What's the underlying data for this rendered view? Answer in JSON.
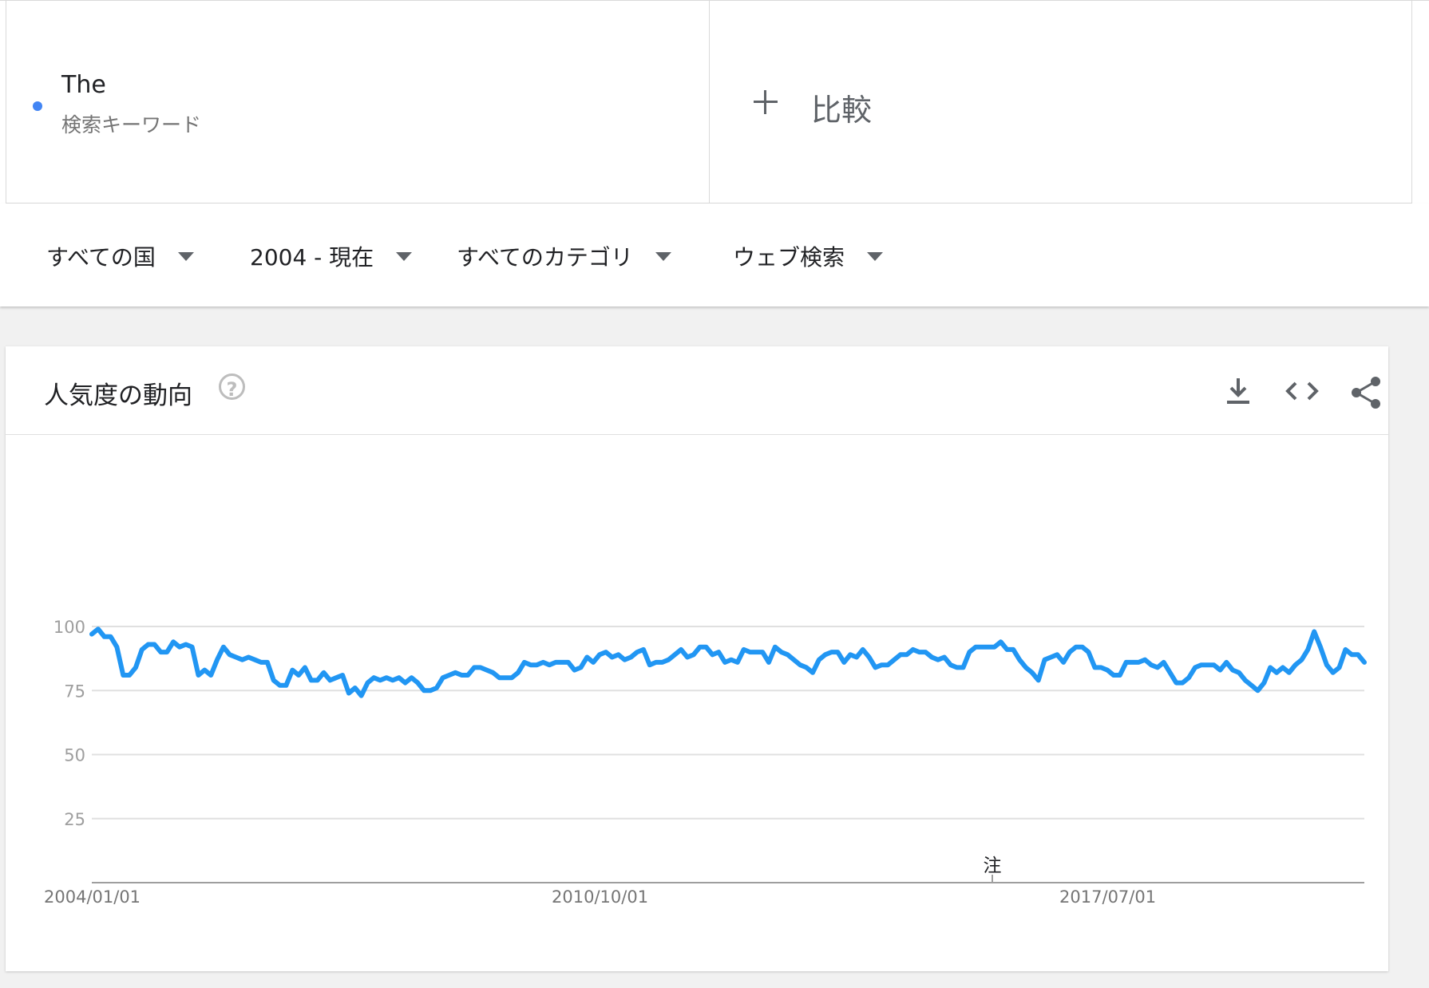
{
  "term": {
    "name": "The",
    "type_label": "検索キーワード",
    "color": "#4285f4"
  },
  "compare": {
    "label": "比較"
  },
  "filters": [
    {
      "label": "すべての国"
    },
    {
      "label": "2004 - 現在"
    },
    {
      "label": "すべてのカテゴリ"
    },
    {
      "label": "ウェブ検索"
    }
  ],
  "card": {
    "title": "人気度の動向",
    "help_glyph": "?",
    "icons": [
      "download-icon",
      "embed-code-icon",
      "share-icon"
    ]
  },
  "chart_data": {
    "type": "line",
    "y_ticks": [
      25,
      50,
      75,
      100
    ],
    "x_tick_labels": [
      "2004/01/01",
      "2010/10/01",
      "2017/07/01"
    ],
    "ylim": [
      0,
      100
    ],
    "grid": true,
    "line_color": "#2196f3",
    "annotation": {
      "label": "注"
    },
    "series": [
      {
        "values": [
          97,
          99,
          96,
          96,
          92,
          81,
          81,
          84,
          91,
          93,
          93,
          90,
          90,
          94,
          92,
          93,
          92,
          81,
          83,
          81,
          87,
          92,
          89,
          88,
          87,
          88,
          87,
          86,
          86,
          79,
          77,
          77,
          83,
          81,
          84,
          79,
          79,
          82,
          79,
          80,
          81,
          74,
          76,
          73,
          78,
          80,
          79,
          80,
          79,
          80,
          78,
          80,
          78,
          75,
          75,
          76,
          80,
          81,
          82,
          81,
          81,
          84,
          84,
          83,
          82,
          80,
          80,
          80,
          82,
          86,
          85,
          85,
          86,
          85,
          86,
          86,
          86,
          83,
          84,
          88,
          86,
          89,
          90,
          88,
          89,
          87,
          88,
          90,
          91,
          85,
          86,
          86,
          87,
          89,
          91,
          88,
          89,
          92,
          92,
          89,
          90,
          86,
          87,
          86,
          91,
          90,
          90,
          90,
          86,
          92,
          90,
          89,
          87,
          85,
          84,
          82,
          87,
          89,
          90,
          90,
          86,
          89,
          88,
          91,
          88,
          84,
          85,
          85,
          87,
          89,
          89,
          91,
          90,
          90,
          88,
          87,
          88,
          85,
          84,
          84,
          90,
          92,
          92,
          92,
          92,
          94,
          91,
          91,
          87,
          84,
          82,
          79,
          87,
          88,
          89,
          86,
          90,
          92,
          92,
          90,
          84,
          84,
          83,
          81,
          81,
          86,
          86,
          86,
          87,
          85,
          84,
          86,
          82,
          78,
          78,
          80,
          84,
          85,
          85,
          85,
          83,
          86,
          83,
          82,
          79,
          77,
          75,
          78,
          84,
          82,
          84,
          82,
          85,
          87,
          91,
          98,
          92,
          85,
          82,
          84,
          91,
          89,
          89,
          86
        ]
      }
    ]
  }
}
